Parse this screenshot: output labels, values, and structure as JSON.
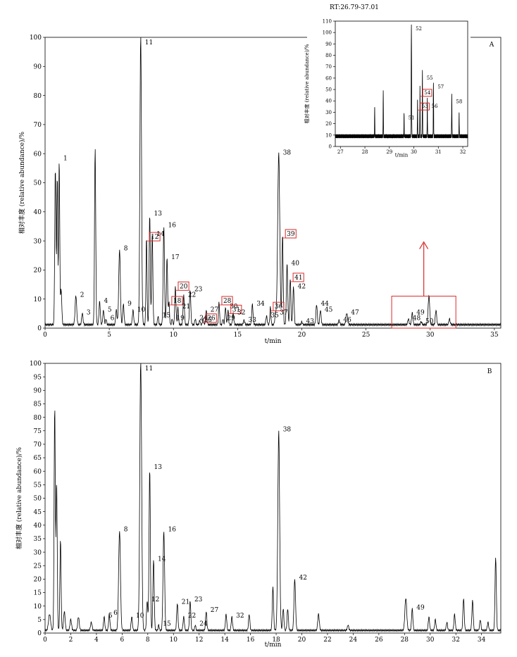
{
  "chart_data": [
    {
      "type": "line",
      "panel_label": "A",
      "xlabel": "t/min",
      "ylabel": "相对丰度 (relative abundance)/%",
      "xlim": [
        0,
        35.5
      ],
      "ylim": [
        0,
        100
      ],
      "xticks": [
        0,
        5,
        10,
        15,
        20,
        25,
        30,
        35
      ],
      "yticks": [
        0,
        10,
        20,
        30,
        40,
        50,
        60,
        70,
        80,
        90,
        100
      ],
      "baseline": 1.2,
      "peaks": [
        {
          "x": 0.8,
          "y": 54,
          "w": 0.045
        },
        {
          "x": 0.95,
          "y": 51,
          "w": 0.04
        },
        {
          "x": 1.1,
          "y": 57,
          "label": "1",
          "w": 0.04
        },
        {
          "x": 1.25,
          "y": 12,
          "w": 0.05
        },
        {
          "x": 2.4,
          "y": 10,
          "label": "2",
          "w": 0.06
        },
        {
          "x": 2.9,
          "y": 4,
          "label": "3",
          "w": 0.05
        },
        {
          "x": 3.9,
          "y": 61,
          "w": 0.045
        },
        {
          "x": 4.25,
          "y": 8,
          "label": "4",
          "w": 0.05
        },
        {
          "x": 4.55,
          "y": 5,
          "label": "5",
          "w": 0.05
        },
        {
          "x": 4.75,
          "y": 2,
          "label": "6",
          "w": 0.04
        },
        {
          "x": 5.55,
          "y": 5,
          "w": 0.05
        },
        {
          "x": 5.8,
          "y": 26,
          "label": "8",
          "w": 0.06
        },
        {
          "x": 6.1,
          "y": 7,
          "label": "9",
          "w": 0.05
        },
        {
          "x": 6.85,
          "y": 5,
          "label": "10",
          "w": 0.05
        },
        {
          "x": 7.45,
          "y": 100,
          "label": "11",
          "w": 0.06
        },
        {
          "x": 7.9,
          "y": 30,
          "label": "12",
          "boxed": true,
          "w": 0.04
        },
        {
          "x": 8.15,
          "y": 38,
          "label": "13",
          "w": 0.045
        },
        {
          "x": 8.35,
          "y": 31,
          "label": "14",
          "w": 0.045
        },
        {
          "x": 8.8,
          "y": 3,
          "label": "15",
          "w": 0.04
        },
        {
          "x": 9.25,
          "y": 34,
          "label": "16",
          "w": 0.05
        },
        {
          "x": 9.5,
          "y": 23,
          "label": "17",
          "w": 0.045
        },
        {
          "x": 9.65,
          "y": 8,
          "label": "18",
          "boxed": true,
          "w": 0.04
        },
        {
          "x": 9.9,
          "y": 2,
          "label": "19",
          "w": 0.04
        },
        {
          "x": 10.15,
          "y": 13,
          "label": "20",
          "boxed": true,
          "w": 0.045
        },
        {
          "x": 10.35,
          "y": 6,
          "label": "21",
          "w": 0.04
        },
        {
          "x": 10.8,
          "y": 10,
          "label": "22",
          "w": 0.05
        },
        {
          "x": 11.3,
          "y": 12,
          "label": "23",
          "w": 0.05
        },
        {
          "x": 11.7,
          "y": 2,
          "label": "24",
          "w": 0.04
        },
        {
          "x": 12.05,
          "y": 1.5,
          "label": "25",
          "w": 0.04
        },
        {
          "x": 12.3,
          "y": 2,
          "label": "26",
          "boxed": true,
          "w": 0.04
        },
        {
          "x": 12.55,
          "y": 5,
          "label": "27",
          "w": 0.05
        },
        {
          "x": 13.55,
          "y": 8,
          "label": "28",
          "boxed": true,
          "w": 0.04
        },
        {
          "x": 13.85,
          "y": 2,
          "label": "29",
          "w": 0.04
        },
        {
          "x": 14.05,
          "y": 6,
          "label": "30",
          "w": 0.045
        },
        {
          "x": 14.25,
          "y": 5,
          "label": "31",
          "boxed": true,
          "w": 0.04
        },
        {
          "x": 14.65,
          "y": 4,
          "label": "32",
          "w": 0.045
        },
        {
          "x": 15.5,
          "y": 1.5,
          "label": "33",
          "w": 0.05
        },
        {
          "x": 16.15,
          "y": 7,
          "label": "34",
          "w": 0.05
        },
        {
          "x": 17.25,
          "y": 3,
          "label": "35",
          "w": 0.05
        },
        {
          "x": 17.55,
          "y": 6,
          "label": "36",
          "boxed": true,
          "w": 0.04
        },
        {
          "x": 17.95,
          "y": 4,
          "label": "37",
          "w": 0.05
        },
        {
          "x": 18.2,
          "y": 59,
          "label": "38",
          "w": 0.08
        },
        {
          "x": 18.5,
          "y": 31,
          "label": "39",
          "boxed": true,
          "w": 0.045
        },
        {
          "x": 18.85,
          "y": 21,
          "label": "40",
          "w": 0.05
        },
        {
          "x": 19.1,
          "y": 16,
          "label": "41",
          "boxed": true,
          "w": 0.045
        },
        {
          "x": 19.35,
          "y": 13,
          "label": "42",
          "w": 0.05
        },
        {
          "x": 20.0,
          "y": 1,
          "label": "43",
          "w": 0.04
        },
        {
          "x": 21.15,
          "y": 7,
          "label": "44",
          "w": 0.05
        },
        {
          "x": 21.45,
          "y": 5,
          "label": "45",
          "w": 0.05
        },
        {
          "x": 22.9,
          "y": 1.5,
          "label": "46",
          "w": 0.05
        },
        {
          "x": 23.5,
          "y": 4,
          "label": "47",
          "w": 0.06
        },
        {
          "x": 28.3,
          "y": 2,
          "label": "48",
          "w": 0.05
        },
        {
          "x": 28.6,
          "y": 4,
          "label": "49",
          "w": 0.05
        },
        {
          "x": 29.3,
          "y": 1,
          "label": "50",
          "w": 0.05
        },
        {
          "x": 29.9,
          "y": 10,
          "w": 0.06
        },
        {
          "x": 30.45,
          "y": 5,
          "w": 0.05
        },
        {
          "x": 31.5,
          "y": 2,
          "w": 0.05
        }
      ],
      "zoom_box": {
        "x": [
          27,
          32
        ],
        "y": [
          0,
          11
        ]
      }
    },
    {
      "type": "line",
      "panel_label": "",
      "title": "RT:26.79-37.01",
      "xlabel": "t/min",
      "ylabel": "相对丰度 (relative abundance)/%",
      "xlim": [
        26.79,
        32.2
      ],
      "ylim": [
        0,
        110
      ],
      "xticks": [
        27,
        28,
        29,
        30,
        31,
        32
      ],
      "yticks": [
        0,
        10,
        20,
        30,
        40,
        50,
        60,
        70,
        80,
        90,
        100,
        110
      ],
      "baseline": 9,
      "peaks": [
        {
          "x": 28.4,
          "y": 28,
          "w": 0.035
        },
        {
          "x": 28.75,
          "y": 39,
          "w": 0.04
        },
        {
          "x": 29.6,
          "y": 22,
          "label": "51",
          "w": 0.035
        },
        {
          "x": 29.9,
          "y": 100,
          "label": "52",
          "w": 0.055
        },
        {
          "x": 30.15,
          "y": 32,
          "label": "53",
          "boxed": true,
          "w": 0.04
        },
        {
          "x": 30.25,
          "y": 44,
          "label": "54",
          "boxed": true,
          "w": 0.04
        },
        {
          "x": 30.35,
          "y": 57,
          "label": "55",
          "w": 0.045
        },
        {
          "x": 30.55,
          "y": 32,
          "label": "56",
          "w": 0.04
        },
        {
          "x": 30.8,
          "y": 49,
          "label": "57",
          "w": 0.045
        },
        {
          "x": 31.55,
          "y": 36,
          "label": "58",
          "w": 0.045
        },
        {
          "x": 31.85,
          "y": 20,
          "w": 0.04
        }
      ]
    },
    {
      "type": "line",
      "panel_label": "B",
      "xlabel": "t/min",
      "ylabel": "相对丰度 (relative abundance)/%",
      "xlim": [
        0,
        35.5
      ],
      "ylim": [
        0,
        100
      ],
      "xticks": [
        0,
        2,
        4,
        6,
        8,
        10,
        12,
        14,
        16,
        18,
        20,
        22,
        24,
        26,
        28,
        30,
        32,
        34
      ],
      "yticks": [
        0,
        5,
        10,
        15,
        20,
        25,
        30,
        35,
        40,
        45,
        50,
        55,
        60,
        65,
        70,
        75,
        80,
        85,
        90,
        95,
        100
      ],
      "baseline": 1,
      "peaks": [
        {
          "x": 0.35,
          "y": 6,
          "w": 0.08
        },
        {
          "x": 0.75,
          "y": 83,
          "w": 0.045
        },
        {
          "x": 0.9,
          "y": 55,
          "w": 0.045
        },
        {
          "x": 1.2,
          "y": 34,
          "w": 0.045
        },
        {
          "x": 1.5,
          "y": 7,
          "w": 0.06
        },
        {
          "x": 2.0,
          "y": 4,
          "w": 0.06
        },
        {
          "x": 2.6,
          "y": 5,
          "w": 0.06
        },
        {
          "x": 3.6,
          "y": 3,
          "w": 0.06
        },
        {
          "x": 4.6,
          "y": 5,
          "label": "5",
          "w": 0.05
        },
        {
          "x": 5.0,
          "y": 6,
          "label": "6",
          "w": 0.05
        },
        {
          "x": 5.8,
          "y": 37,
          "label": "8",
          "w": 0.07
        },
        {
          "x": 6.75,
          "y": 5,
          "label": "10",
          "w": 0.05
        },
        {
          "x": 7.45,
          "y": 100,
          "label": "11",
          "w": 0.07
        },
        {
          "x": 7.95,
          "y": 11,
          "label": "12",
          "w": 0.05
        },
        {
          "x": 8.15,
          "y": 60,
          "label": "13",
          "w": 0.05
        },
        {
          "x": 8.45,
          "y": 26,
          "label": "14",
          "w": 0.05
        },
        {
          "x": 8.85,
          "y": 2,
          "label": "15",
          "w": 0.04
        },
        {
          "x": 9.25,
          "y": 37,
          "label": "16",
          "w": 0.06
        },
        {
          "x": 10.3,
          "y": 10,
          "label": "21",
          "w": 0.05
        },
        {
          "x": 10.8,
          "y": 5,
          "label": "22",
          "w": 0.05
        },
        {
          "x": 11.3,
          "y": 11,
          "label": "23",
          "w": 0.05
        },
        {
          "x": 11.7,
          "y": 2,
          "label": "24",
          "w": 0.04
        },
        {
          "x": 12.55,
          "y": 7,
          "label": "27",
          "w": 0.05
        },
        {
          "x": 14.1,
          "y": 6,
          "w": 0.05
        },
        {
          "x": 14.55,
          "y": 5,
          "label": "32",
          "w": 0.05
        },
        {
          "x": 15.9,
          "y": 6,
          "w": 0.05
        },
        {
          "x": 17.75,
          "y": 16,
          "w": 0.05
        },
        {
          "x": 18.2,
          "y": 74,
          "label": "38",
          "w": 0.07
        },
        {
          "x": 18.55,
          "y": 8,
          "w": 0.05
        },
        {
          "x": 18.9,
          "y": 8,
          "w": 0.05
        },
        {
          "x": 19.45,
          "y": 19,
          "label": "42",
          "w": 0.06
        },
        {
          "x": 21.3,
          "y": 6,
          "w": 0.06
        },
        {
          "x": 23.6,
          "y": 2,
          "w": 0.05
        },
        {
          "x": 28.1,
          "y": 12,
          "w": 0.07
        },
        {
          "x": 28.6,
          "y": 8,
          "label": "49",
          "w": 0.05
        },
        {
          "x": 29.9,
          "y": 5,
          "w": 0.05
        },
        {
          "x": 30.4,
          "y": 4,
          "w": 0.05
        },
        {
          "x": 31.3,
          "y": 3,
          "w": 0.05
        },
        {
          "x": 31.9,
          "y": 6,
          "w": 0.05
        },
        {
          "x": 32.6,
          "y": 12,
          "w": 0.05
        },
        {
          "x": 33.3,
          "y": 11,
          "w": 0.05
        },
        {
          "x": 33.9,
          "y": 4,
          "w": 0.05
        },
        {
          "x": 34.5,
          "y": 3,
          "w": 0.05
        },
        {
          "x": 35.1,
          "y": 27,
          "w": 0.05
        }
      ]
    }
  ]
}
